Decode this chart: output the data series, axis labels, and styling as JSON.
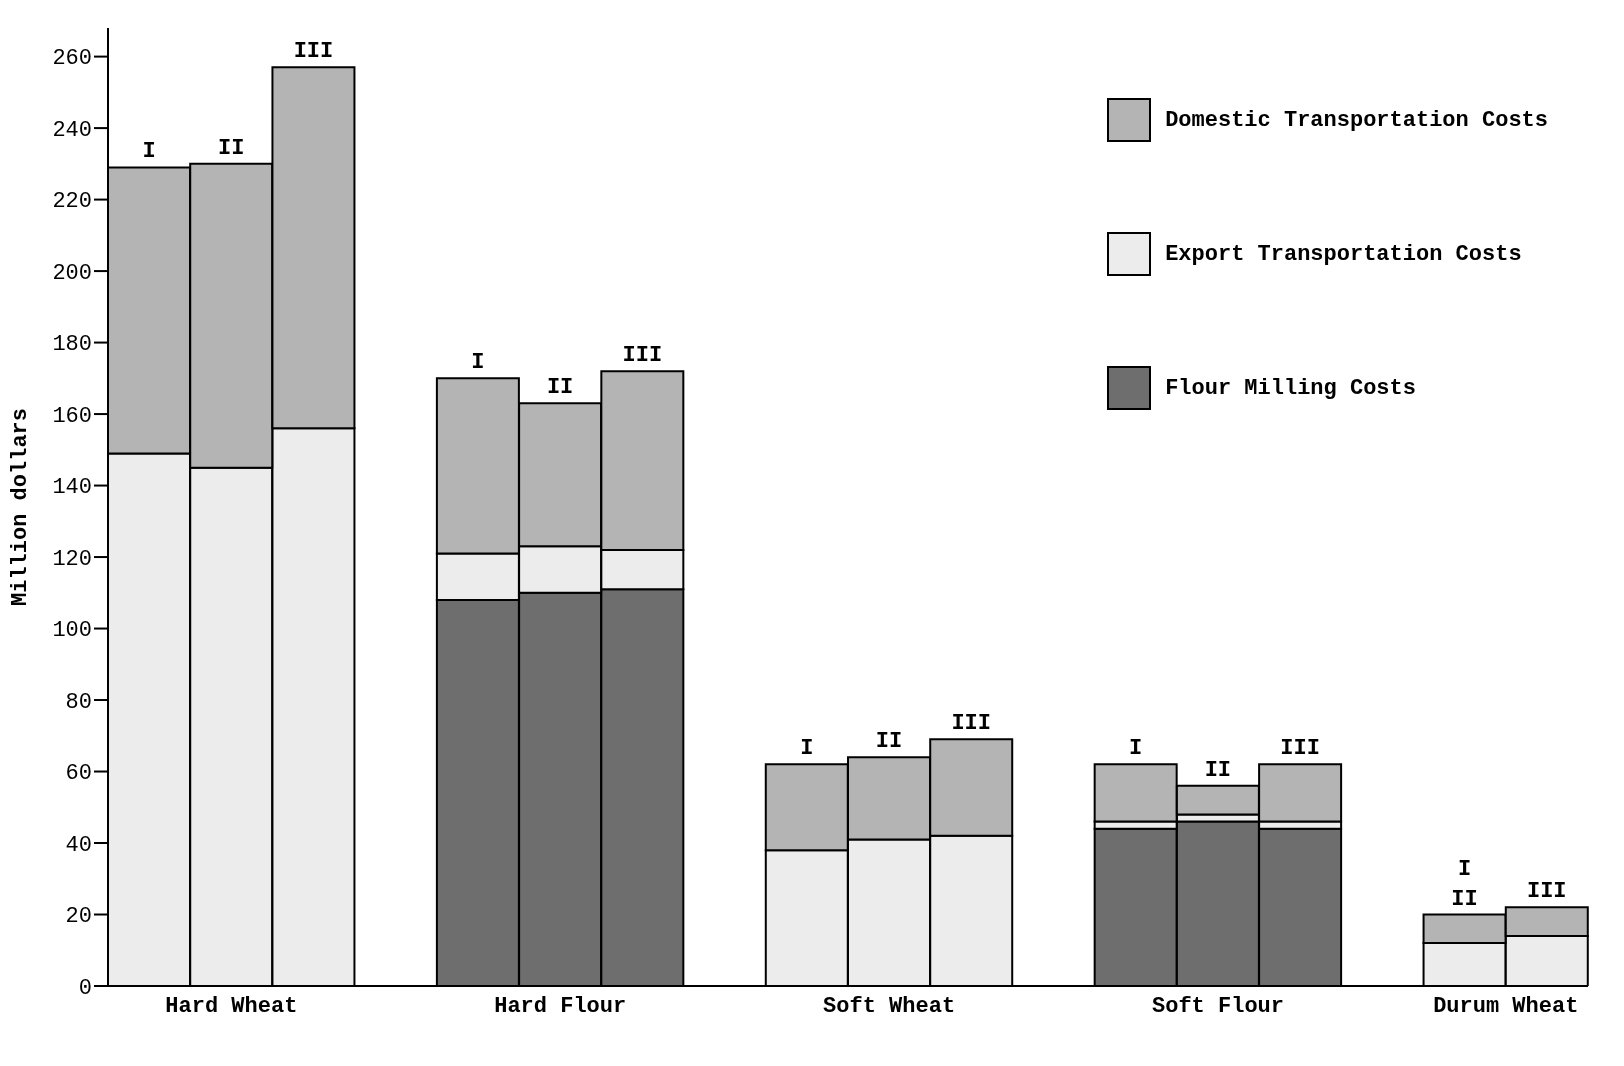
{
  "chart_data": {
    "type": "bar",
    "stacked": true,
    "ylabel": "Million dollars",
    "categories": [
      "I",
      "II",
      "III",
      null,
      "I",
      "II",
      "III",
      null,
      "I",
      "II",
      "III",
      null,
      "I",
      "II",
      "III",
      null,
      "I\nII",
      "III"
    ],
    "series": [
      {
        "name": "Flour Milling Costs",
        "color": "#6e6e6e",
        "values": [
          null,
          null,
          null,
          null,
          108,
          110,
          111,
          null,
          null,
          null,
          null,
          null,
          44,
          46,
          44,
          null,
          null,
          null
        ]
      },
      {
        "name": "Export Transportation Costs",
        "color": "#ececec",
        "values": [
          149,
          145,
          156,
          null,
          13,
          13,
          11,
          null,
          38,
          41,
          42,
          null,
          2,
          2,
          2,
          null,
          12,
          14
        ]
      },
      {
        "name": "Domestic Transportation Costs",
        "color": "#b4b4b4",
        "values": [
          80,
          85,
          101,
          null,
          49,
          40,
          50,
          null,
          24,
          23,
          27,
          null,
          16,
          8,
          16,
          null,
          8,
          8
        ]
      }
    ],
    "annotations": [
      "Hard Wheat",
      "Hard Flour",
      "Soft Wheat",
      "Soft Flour",
      "Durum Wheat"
    ],
    "ylim": [
      0,
      268
    ],
    "yticks": [
      0,
      20,
      40,
      60,
      80,
      100,
      120,
      140,
      160,
      180,
      200,
      220,
      240,
      260
    ],
    "legend": "top right"
  }
}
